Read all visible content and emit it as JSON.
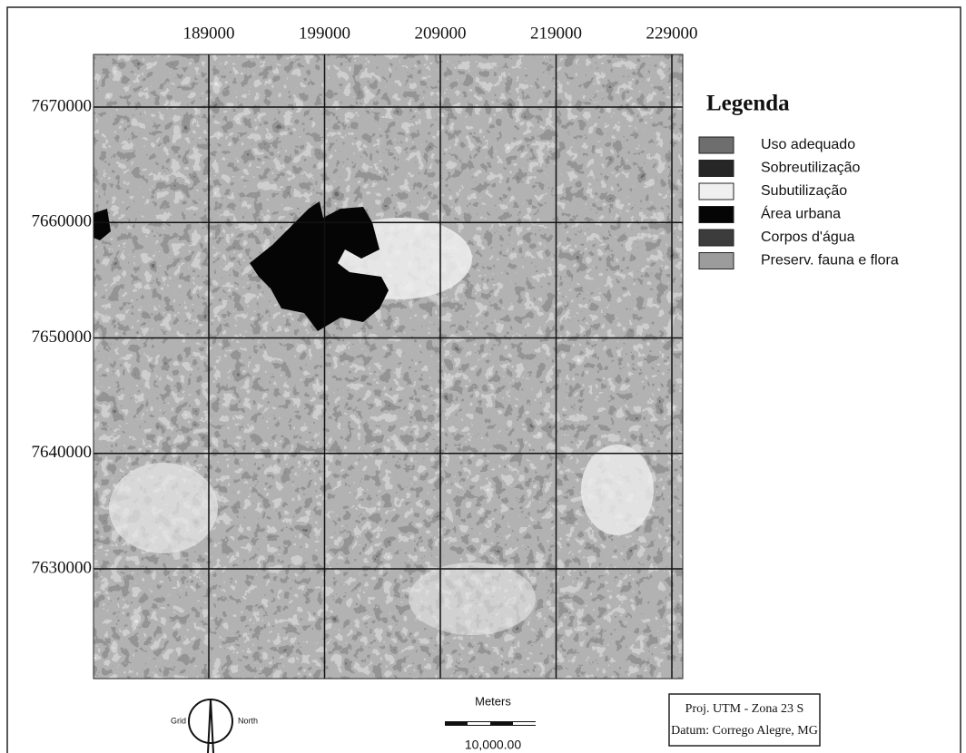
{
  "map": {
    "xlim": [
      179040,
      229940
    ],
    "ylim": [
      7620490,
      7674560
    ],
    "xticks": [
      189000,
      199000,
      209000,
      219000,
      229000
    ],
    "yticks": [
      7670000,
      7660000,
      7650000,
      7640000,
      7630000
    ]
  },
  "legend": {
    "title": "Legenda",
    "items": [
      {
        "label": "Uso adequado",
        "color": "#6e6e6e"
      },
      {
        "label": "Sobreutilização",
        "color": "#262626"
      },
      {
        "label": "Subutilização",
        "color": "#f0f0f0"
      },
      {
        "label": "Área urbana",
        "color": "#050505"
      },
      {
        "label": "Corpos d'água",
        "color": "#3c3c3c"
      },
      {
        "label": "Preserv. fauna e flora",
        "color": "#9c9c9c"
      }
    ]
  },
  "north_arrow": {
    "left": "Grid",
    "right": "North"
  },
  "scale_bar": {
    "unit": "Meters",
    "label": "10,000.00"
  },
  "info_box": {
    "lines": [
      "Proj. UTM - Zona 23 S",
      "Datum: Corrego Alegre, MG"
    ]
  }
}
